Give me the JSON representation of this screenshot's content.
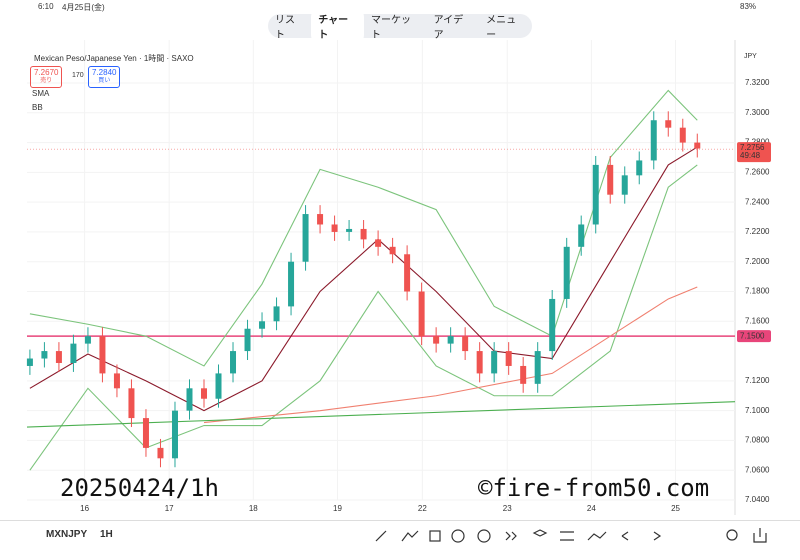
{
  "status": {
    "time": "6:10",
    "date": "4月25日(金)",
    "battery": "83%"
  },
  "tabs": [
    "リスト",
    "チャート",
    "マーケット",
    "アイデア",
    "メニュー"
  ],
  "active_tab": "チャート",
  "symbol_header": "Mexican Peso/Japanese Yen · 1時間 · SAXO",
  "sell": {
    "price": "7.2670",
    "label": "売り"
  },
  "spread": "170",
  "buy": {
    "price": "7.2840",
    "label": "買い"
  },
  "indicators": [
    "SMA",
    "BB"
  ],
  "currency": "JPY",
  "watermark_left": "20250424/1h",
  "watermark_right": "©fire-from50.com",
  "bottom": {
    "symbol": "MXNJPY",
    "interval": "1H"
  },
  "chart_data": {
    "type": "candlestick",
    "up_color": "#26a69a",
    "down_color": "#ef5350",
    "open": [
      7.13,
      7.135,
      7.14,
      7.132,
      7.145,
      7.15,
      7.125,
      7.115,
      7.095,
      7.075,
      7.068,
      7.1,
      7.115,
      7.108,
      7.125,
      7.14,
      7.155,
      7.16,
      7.17,
      7.2,
      7.232,
      7.225,
      7.22,
      7.222,
      7.215,
      7.21,
      7.205,
      7.18,
      7.15,
      7.145,
      7.15,
      7.14,
      7.125,
      7.14,
      7.13,
      7.118,
      7.14,
      7.175,
      7.21,
      7.225,
      7.265,
      7.245,
      7.258,
      7.268,
      7.295,
      7.29,
      7.28
    ],
    "high": [
      7.141,
      7.146,
      7.146,
      7.151,
      7.156,
      7.156,
      7.131,
      7.121,
      7.101,
      7.081,
      7.106,
      7.121,
      7.121,
      7.131,
      7.146,
      7.161,
      7.166,
      7.176,
      7.206,
      7.238,
      7.238,
      7.231,
      7.228,
      7.228,
      7.221,
      7.216,
      7.211,
      7.186,
      7.156,
      7.156,
      7.156,
      7.146,
      7.146,
      7.146,
      7.136,
      7.146,
      7.181,
      7.216,
      7.231,
      7.271,
      7.271,
      7.264,
      7.274,
      7.301,
      7.301,
      7.296,
      7.286
    ],
    "low": [
      7.124,
      7.129,
      7.126,
      7.126,
      7.139,
      7.119,
      7.109,
      7.089,
      7.069,
      7.062,
      7.062,
      7.094,
      7.102,
      7.102,
      7.119,
      7.134,
      7.149,
      7.154,
      7.164,
      7.194,
      7.219,
      7.214,
      7.214,
      7.209,
      7.204,
      7.199,
      7.174,
      7.144,
      7.139,
      7.139,
      7.134,
      7.119,
      7.119,
      7.124,
      7.112,
      7.112,
      7.134,
      7.169,
      7.204,
      7.219,
      7.239,
      7.239,
      7.252,
      7.262,
      7.284,
      7.274,
      7.27
    ],
    "close": [
      7.135,
      7.14,
      7.132,
      7.145,
      7.15,
      7.125,
      7.115,
      7.095,
      7.075,
      7.068,
      7.1,
      7.115,
      7.108,
      7.125,
      7.14,
      7.155,
      7.16,
      7.17,
      7.2,
      7.232,
      7.225,
      7.22,
      7.222,
      7.215,
      7.21,
      7.205,
      7.18,
      7.15,
      7.145,
      7.15,
      7.14,
      7.125,
      7.14,
      7.13,
      7.118,
      7.14,
      7.175,
      7.21,
      7.225,
      7.265,
      7.245,
      7.258,
      7.268,
      7.295,
      7.29,
      7.28,
      7.276
    ],
    "lines": [
      {
        "color": "#8b1a2b",
        "x": [
          0,
          4,
          8,
          12,
          16,
          20,
          24,
          28,
          32,
          36,
          40,
          44,
          46
        ],
        "values": [
          7.115,
          7.138,
          7.12,
          7.1,
          7.12,
          7.18,
          7.215,
          7.18,
          7.14,
          7.135,
          7.2,
          7.265,
          7.277
        ]
      },
      {
        "color": "#7cc47c",
        "x": [
          0,
          4,
          8,
          12,
          16,
          20,
          24,
          28,
          32,
          36,
          40,
          44,
          46
        ],
        "values": [
          7.165,
          7.158,
          7.15,
          7.13,
          7.185,
          7.262,
          7.25,
          7.235,
          7.17,
          7.15,
          7.27,
          7.315,
          7.295
        ]
      },
      {
        "color": "#7cc47c",
        "x": [
          0,
          4,
          8,
          12,
          16,
          20,
          24,
          28,
          32,
          36,
          40,
          44,
          46
        ],
        "values": [
          7.06,
          7.115,
          7.075,
          7.09,
          7.09,
          7.12,
          7.18,
          7.13,
          7.11,
          7.11,
          7.14,
          7.25,
          7.265
        ]
      },
      {
        "color": "#f08070",
        "x": [
          12,
          20,
          28,
          36,
          44,
          46
        ],
        "values": [
          7.092,
          7.1,
          7.11,
          7.125,
          7.175,
          7.183
        ]
      },
      {
        "color": "#4caf50",
        "x": [
          -0.2,
          48.6
        ],
        "values": [
          7.089,
          7.106
        ]
      }
    ],
    "hline": {
      "value": 7.15,
      "label": "7.1500",
      "color": "#e8457a"
    },
    "last_price": {
      "value": 7.2756,
      "label": "7.2756",
      "countdown": "49:48",
      "color": "#ef5350"
    },
    "xlim": [
      -0.2,
      48.6
    ],
    "xticks": [
      {
        "value": 3.77,
        "label": "16"
      },
      {
        "value": 9.6,
        "label": "17"
      },
      {
        "value": 15.4,
        "label": "18"
      },
      {
        "value": 21.2,
        "label": "19"
      },
      {
        "value": 27.05,
        "label": "22"
      },
      {
        "value": 32.9,
        "label": "23"
      },
      {
        "value": 38.7,
        "label": "24"
      },
      {
        "value": 44.5,
        "label": "25"
      }
    ],
    "ylim": [
      7.04,
      7.32
    ],
    "yticks": [
      {
        "value": 7.32,
        "label": "7.3200"
      },
      {
        "value": 7.3,
        "label": "7.3000"
      },
      {
        "value": 7.28,
        "label": "7.2800"
      },
      {
        "value": 7.26,
        "label": "7.2600"
      },
      {
        "value": 7.24,
        "label": "7.2400"
      },
      {
        "value": 7.22,
        "label": "7.2200"
      },
      {
        "value": 7.2,
        "label": "7.2000"
      },
      {
        "value": 7.18,
        "label": "7.1800"
      },
      {
        "value": 7.16,
        "label": "7.1600"
      },
      {
        "value": 7.12,
        "label": "7.1200"
      },
      {
        "value": 7.1,
        "label": "7.1000"
      },
      {
        "value": 7.08,
        "label": "7.0800"
      },
      {
        "value": 7.06,
        "label": "7.0600"
      },
      {
        "value": 7.04,
        "label": "7.0400"
      }
    ],
    "grid": true
  }
}
